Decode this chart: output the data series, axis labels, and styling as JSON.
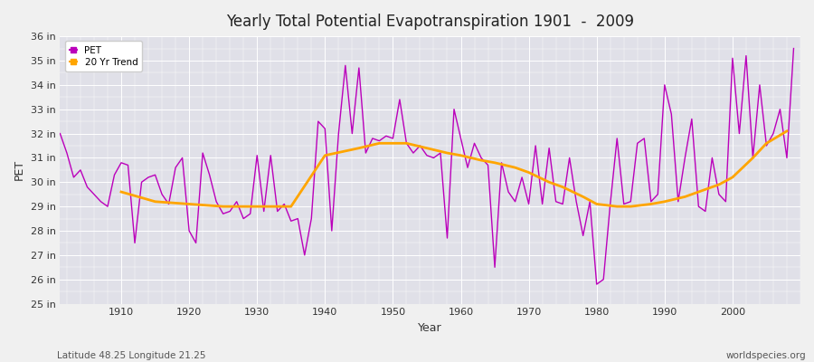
{
  "title": "Yearly Total Potential Evapotranspiration 1901  -  2009",
  "xlabel": "Year",
  "ylabel": "PET",
  "background_color": "#f0f0f0",
  "plot_bg_color": "#e0e0e8",
  "pet_color": "#bb00bb",
  "trend_color": "#ffa500",
  "footnote_left": "Latitude 48.25 Longitude 21.25",
  "footnote_right": "worldspecies.org",
  "ylim": [
    25,
    36
  ],
  "xlim": [
    1901,
    2010
  ],
  "years": [
    1901,
    1902,
    1903,
    1904,
    1905,
    1906,
    1907,
    1908,
    1909,
    1910,
    1911,
    1912,
    1913,
    1914,
    1915,
    1916,
    1917,
    1918,
    1919,
    1920,
    1921,
    1922,
    1923,
    1924,
    1925,
    1926,
    1927,
    1928,
    1929,
    1930,
    1931,
    1932,
    1933,
    1934,
    1935,
    1936,
    1937,
    1938,
    1939,
    1940,
    1941,
    1942,
    1943,
    1944,
    1945,
    1946,
    1947,
    1948,
    1949,
    1950,
    1951,
    1952,
    1953,
    1954,
    1955,
    1956,
    1957,
    1958,
    1959,
    1960,
    1961,
    1962,
    1963,
    1964,
    1965,
    1966,
    1967,
    1968,
    1969,
    1970,
    1971,
    1972,
    1973,
    1974,
    1975,
    1976,
    1977,
    1978,
    1979,
    1980,
    1981,
    1982,
    1983,
    1984,
    1985,
    1986,
    1987,
    1988,
    1989,
    1990,
    1991,
    1992,
    1993,
    1994,
    1995,
    1996,
    1997,
    1998,
    1999,
    2000,
    2001,
    2002,
    2003,
    2004,
    2005,
    2006,
    2007,
    2008,
    2009
  ],
  "pet": [
    32.0,
    31.2,
    30.2,
    30.5,
    29.8,
    29.5,
    29.2,
    29.0,
    30.3,
    30.8,
    30.7,
    27.5,
    30.0,
    30.2,
    30.3,
    29.5,
    29.1,
    30.6,
    31.0,
    28.0,
    27.5,
    31.2,
    30.3,
    29.2,
    28.7,
    28.8,
    29.2,
    28.5,
    28.7,
    31.1,
    28.8,
    31.1,
    28.8,
    29.1,
    28.4,
    28.5,
    27.0,
    28.5,
    32.5,
    32.2,
    28.0,
    32.0,
    34.8,
    32.0,
    34.7,
    31.2,
    31.8,
    31.7,
    31.9,
    31.8,
    33.4,
    31.6,
    31.2,
    31.5,
    31.1,
    31.0,
    31.2,
    27.7,
    33.0,
    31.8,
    30.6,
    31.6,
    31.0,
    30.7,
    26.5,
    30.8,
    29.6,
    29.2,
    30.2,
    29.1,
    31.5,
    29.1,
    31.4,
    29.2,
    29.1,
    31.0,
    29.2,
    27.8,
    29.2,
    25.8,
    26.0,
    29.1,
    31.8,
    29.1,
    29.2,
    31.6,
    31.8,
    29.2,
    29.5,
    34.0,
    32.8,
    29.2,
    31.0,
    32.6,
    29.0,
    28.8,
    31.0,
    29.5,
    29.2,
    35.1,
    32.0,
    35.2,
    31.0,
    34.0,
    31.5,
    32.0,
    33.0,
    31.0,
    35.5
  ],
  "trend_years": [
    1910,
    1915,
    1920,
    1925,
    1930,
    1935,
    1940,
    1945,
    1948,
    1950,
    1952,
    1955,
    1958,
    1960,
    1963,
    1965,
    1968,
    1970,
    1973,
    1975,
    1978,
    1980,
    1983,
    1985,
    1988,
    1990,
    1993,
    1995,
    1998,
    2000,
    2003,
    2005,
    2008
  ],
  "trend_vals": [
    29.6,
    29.2,
    29.1,
    29.0,
    29.0,
    29.0,
    31.1,
    31.4,
    31.6,
    31.6,
    31.6,
    31.4,
    31.2,
    31.1,
    30.9,
    30.8,
    30.6,
    30.4,
    30.0,
    29.8,
    29.4,
    29.1,
    29.0,
    29.0,
    29.1,
    29.2,
    29.4,
    29.6,
    29.9,
    30.2,
    31.0,
    31.6,
    32.1
  ]
}
